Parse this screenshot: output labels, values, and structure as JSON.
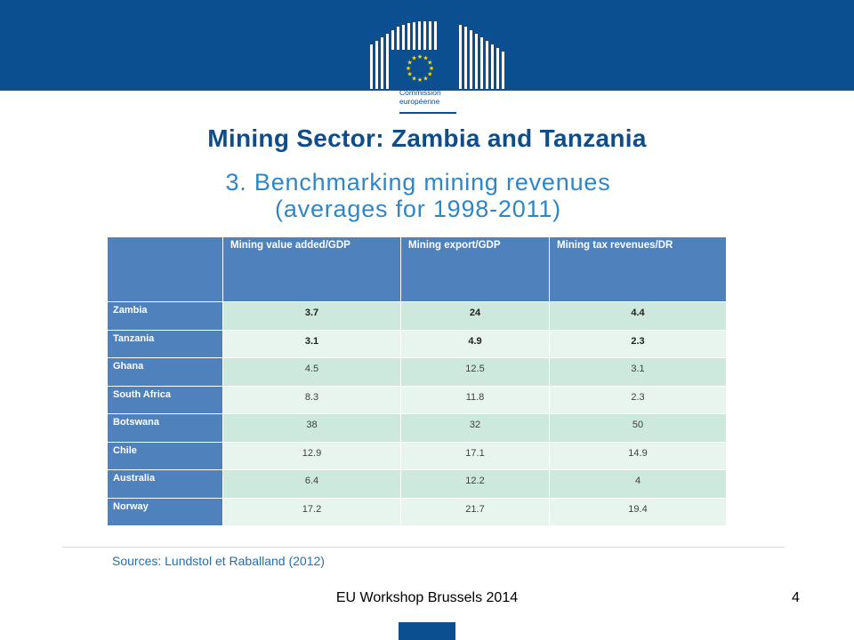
{
  "colors": {
    "brand": "#0b4f91",
    "title": "#0f4c8a",
    "subtitle": "#2f86c7",
    "header_bg": "#4f81bd"
  },
  "logo": {
    "line1": "Commission",
    "line2": "européenne"
  },
  "title": "Mining Sector: Zambia and Tanzania",
  "subtitle": {
    "line1": "3. Benchmarking mining revenues",
    "line2": "(averages for 1998-2011)"
  },
  "table": {
    "headers": [
      "",
      "Mining value added/GDP",
      "Mining export/GDP",
      "Mining tax revenues/DR"
    ],
    "rows": [
      {
        "country": "Zambia",
        "values": [
          "3.7",
          "24",
          "4.4"
        ]
      },
      {
        "country": "Tanzania",
        "values": [
          "3.1",
          "4.9",
          "2.3"
        ]
      },
      {
        "country": "Ghana",
        "values": [
          "4.5",
          "12.5",
          "3.1"
        ]
      },
      {
        "country": "South Africa",
        "values": [
          "8.3",
          "11.8",
          "2.3"
        ]
      },
      {
        "country": "Botswana",
        "values": [
          "38",
          "32",
          "50"
        ]
      },
      {
        "country": "Chile",
        "values": [
          "12.9",
          "17.1",
          "14.9"
        ]
      },
      {
        "country": "Australia",
        "values": [
          "6.4",
          "12.2",
          "4"
        ]
      },
      {
        "country": "Norway",
        "values": [
          "17.2",
          "21.7",
          "19.4"
        ]
      }
    ]
  },
  "sources": "Sources: Lundstol et Raballand (2012)",
  "footer": "EU Workshop Brussels 2014",
  "page_number": "4"
}
